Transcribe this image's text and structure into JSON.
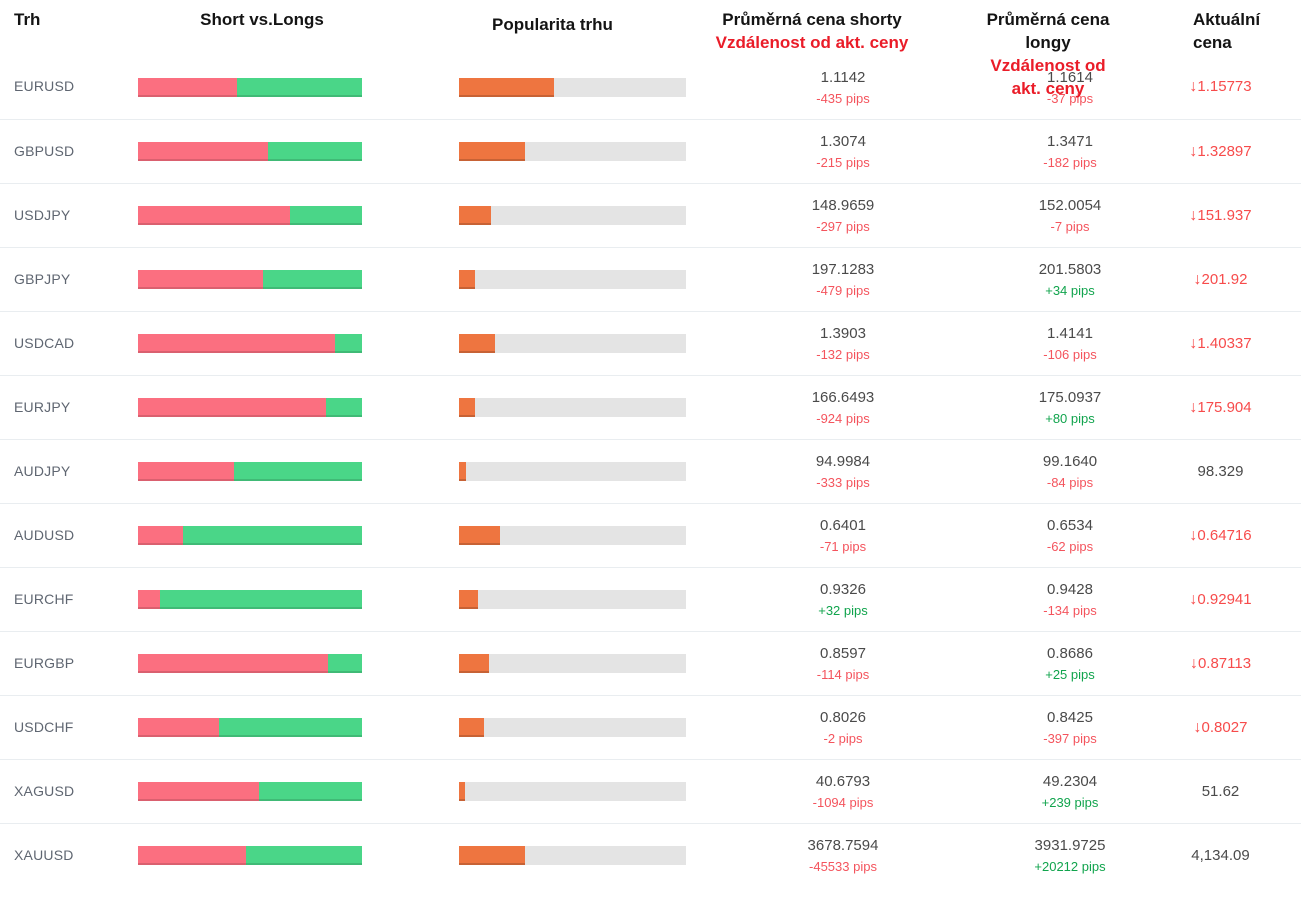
{
  "header": {
    "col_market": "Trh",
    "col_sentiment": "Short vs.Longs",
    "col_popularity": "Popularita trhu",
    "col_short_line1": "Průměrná cena shorty",
    "col_short_line2": "Vzdálenost od akt. ceny",
    "col_long_line1": "Průměrná cena longy",
    "col_long_line2": "Vzdálenost od akt. ceny",
    "col_current_line1": "Aktuální",
    "col_current_line2": "cena"
  },
  "icons": {
    "down_arrow": "↓"
  },
  "colors": {
    "short_bar": "#fb6f80",
    "long_bar": "#4ad688",
    "popularity_bar": "#ee7540",
    "popularity_track": "#e4e4e4",
    "header_red": "#ea1c28",
    "pips_negative": "#f4545d",
    "pips_positive": "#11a44d",
    "price_down": "#f74b4b",
    "price_neutral": "#4a4a4a"
  },
  "chart_data": {
    "type": "table",
    "columns": [
      "Trh",
      "Short %",
      "Popularita trhu %",
      "Průměrná cena shorty",
      "Vzdálenost od akt. ceny (shorty)",
      "Průměrná cena longy",
      "Vzdálenost od akt. ceny (longy)",
      "Aktuální cena"
    ],
    "note": "short_pct = red share of Short vs.Longs bar; popularity_pct = orange fill of market popularity bar"
  },
  "rows": [
    {
      "market": "EURUSD",
      "short_pct": 44,
      "popularity_pct": 42,
      "short_price": "1.1142",
      "short_pips": "-435 pips",
      "long_price": "1.1614",
      "long_pips": "-37 pips",
      "current": "1.15773",
      "current_down": true
    },
    {
      "market": "GBPUSD",
      "short_pct": 58,
      "popularity_pct": 29,
      "short_price": "1.3074",
      "short_pips": "-215 pips",
      "long_price": "1.3471",
      "long_pips": "-182 pips",
      "current": "1.32897",
      "current_down": true
    },
    {
      "market": "USDJPY",
      "short_pct": 68,
      "popularity_pct": 14,
      "short_price": "148.9659",
      "short_pips": "-297 pips",
      "long_price": "152.0054",
      "long_pips": "-7 pips",
      "current": "151.937",
      "current_down": true
    },
    {
      "market": "GBPJPY",
      "short_pct": 56,
      "popularity_pct": 7,
      "short_price": "197.1283",
      "short_pips": "-479 pips",
      "long_price": "201.5803",
      "long_pips": "+34 pips",
      "current": "201.92",
      "current_down": true
    },
    {
      "market": "USDCAD",
      "short_pct": 88,
      "popularity_pct": 16,
      "short_price": "1.3903",
      "short_pips": "-132 pips",
      "long_price": "1.4141",
      "long_pips": "-106 pips",
      "current": "1.40337",
      "current_down": true
    },
    {
      "market": "EURJPY",
      "short_pct": 84,
      "popularity_pct": 7,
      "short_price": "166.6493",
      "short_pips": "-924 pips",
      "long_price": "175.0937",
      "long_pips": "+80 pips",
      "current": "175.904",
      "current_down": true
    },
    {
      "market": "AUDJPY",
      "short_pct": 43,
      "popularity_pct": 3,
      "short_price": "94.9984",
      "short_pips": "-333 pips",
      "long_price": "99.1640",
      "long_pips": "-84 pips",
      "current": "98.329",
      "current_down": false
    },
    {
      "market": "AUDUSD",
      "short_pct": 20,
      "popularity_pct": 18,
      "short_price": "0.6401",
      "short_pips": "-71 pips",
      "long_price": "0.6534",
      "long_pips": "-62 pips",
      "current": "0.64716",
      "current_down": true
    },
    {
      "market": "EURCHF",
      "short_pct": 10,
      "popularity_pct": 8.5,
      "short_price": "0.9326",
      "short_pips": "+32 pips",
      "long_price": "0.9428",
      "long_pips": "-134 pips",
      "current": "0.92941",
      "current_down": true
    },
    {
      "market": "EURGBP",
      "short_pct": 85,
      "popularity_pct": 13,
      "short_price": "0.8597",
      "short_pips": "-114 pips",
      "long_price": "0.8686",
      "long_pips": "+25 pips",
      "current": "0.87113",
      "current_down": true
    },
    {
      "market": "USDCHF",
      "short_pct": 36,
      "popularity_pct": 11,
      "short_price": "0.8026",
      "short_pips": "-2 pips",
      "long_price": "0.8425",
      "long_pips": "-397 pips",
      "current": "0.8027",
      "current_down": true
    },
    {
      "market": "XAGUSD",
      "short_pct": 54,
      "popularity_pct": 2.5,
      "short_price": "40.6793",
      "short_pips": "-1094 pips",
      "long_price": "49.2304",
      "long_pips": "+239 pips",
      "current": "51.62",
      "current_down": false
    },
    {
      "market": "XAUUSD",
      "short_pct": 48,
      "popularity_pct": 29,
      "short_price": "3678.7594",
      "short_pips": "-45533 pips",
      "long_price": "3931.9725",
      "long_pips": "+20212 pips",
      "current": "4,134.09",
      "current_down": false
    }
  ]
}
